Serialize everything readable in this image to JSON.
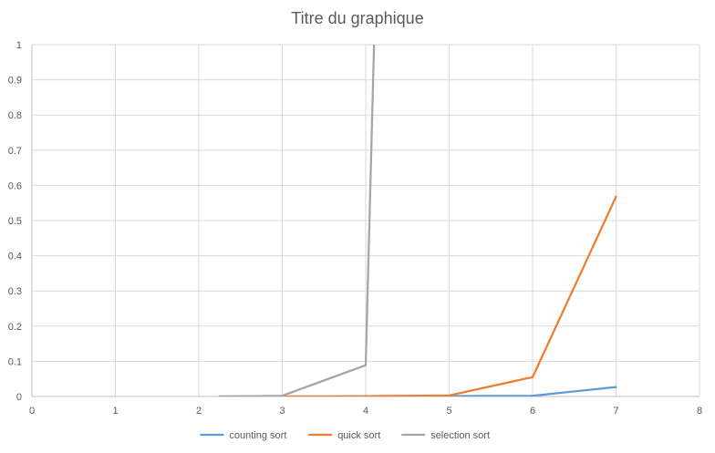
{
  "chart_data": {
    "type": "line",
    "title": "Titre du graphique",
    "xlabel": "",
    "ylabel": "",
    "xlim": [
      0,
      8
    ],
    "ylim": [
      0,
      1
    ],
    "x_ticks": [
      "0",
      "1",
      "2",
      "3",
      "4",
      "5",
      "6",
      "7",
      "8"
    ],
    "y_ticks": [
      "0",
      "0.1",
      "0.2",
      "0.3",
      "0.4",
      "0.5",
      "0.6",
      "0.7",
      "0.8",
      "0.9",
      "1"
    ],
    "grid": true,
    "legend_position": "bottom",
    "series": [
      {
        "name": "counting sort",
        "color": "#5B9BD5",
        "points": [
          [
            2.25,
            0
          ],
          [
            3,
            0
          ],
          [
            4,
            0
          ],
          [
            5,
            0.001
          ],
          [
            6,
            0.002
          ],
          [
            7,
            0.027
          ]
        ]
      },
      {
        "name": "quick sort",
        "color": "#ED7D31",
        "points": [
          [
            2.25,
            0
          ],
          [
            3,
            0
          ],
          [
            4,
            0.001
          ],
          [
            5,
            0.003
          ],
          [
            6,
            0.055
          ],
          [
            7,
            0.568
          ]
        ]
      },
      {
        "name": "selection sort",
        "color": "#A5A5A5",
        "points": [
          [
            2.25,
            0
          ],
          [
            3,
            0.002
          ],
          [
            4,
            0.089
          ],
          [
            4.1,
            1.0
          ]
        ]
      }
    ]
  }
}
